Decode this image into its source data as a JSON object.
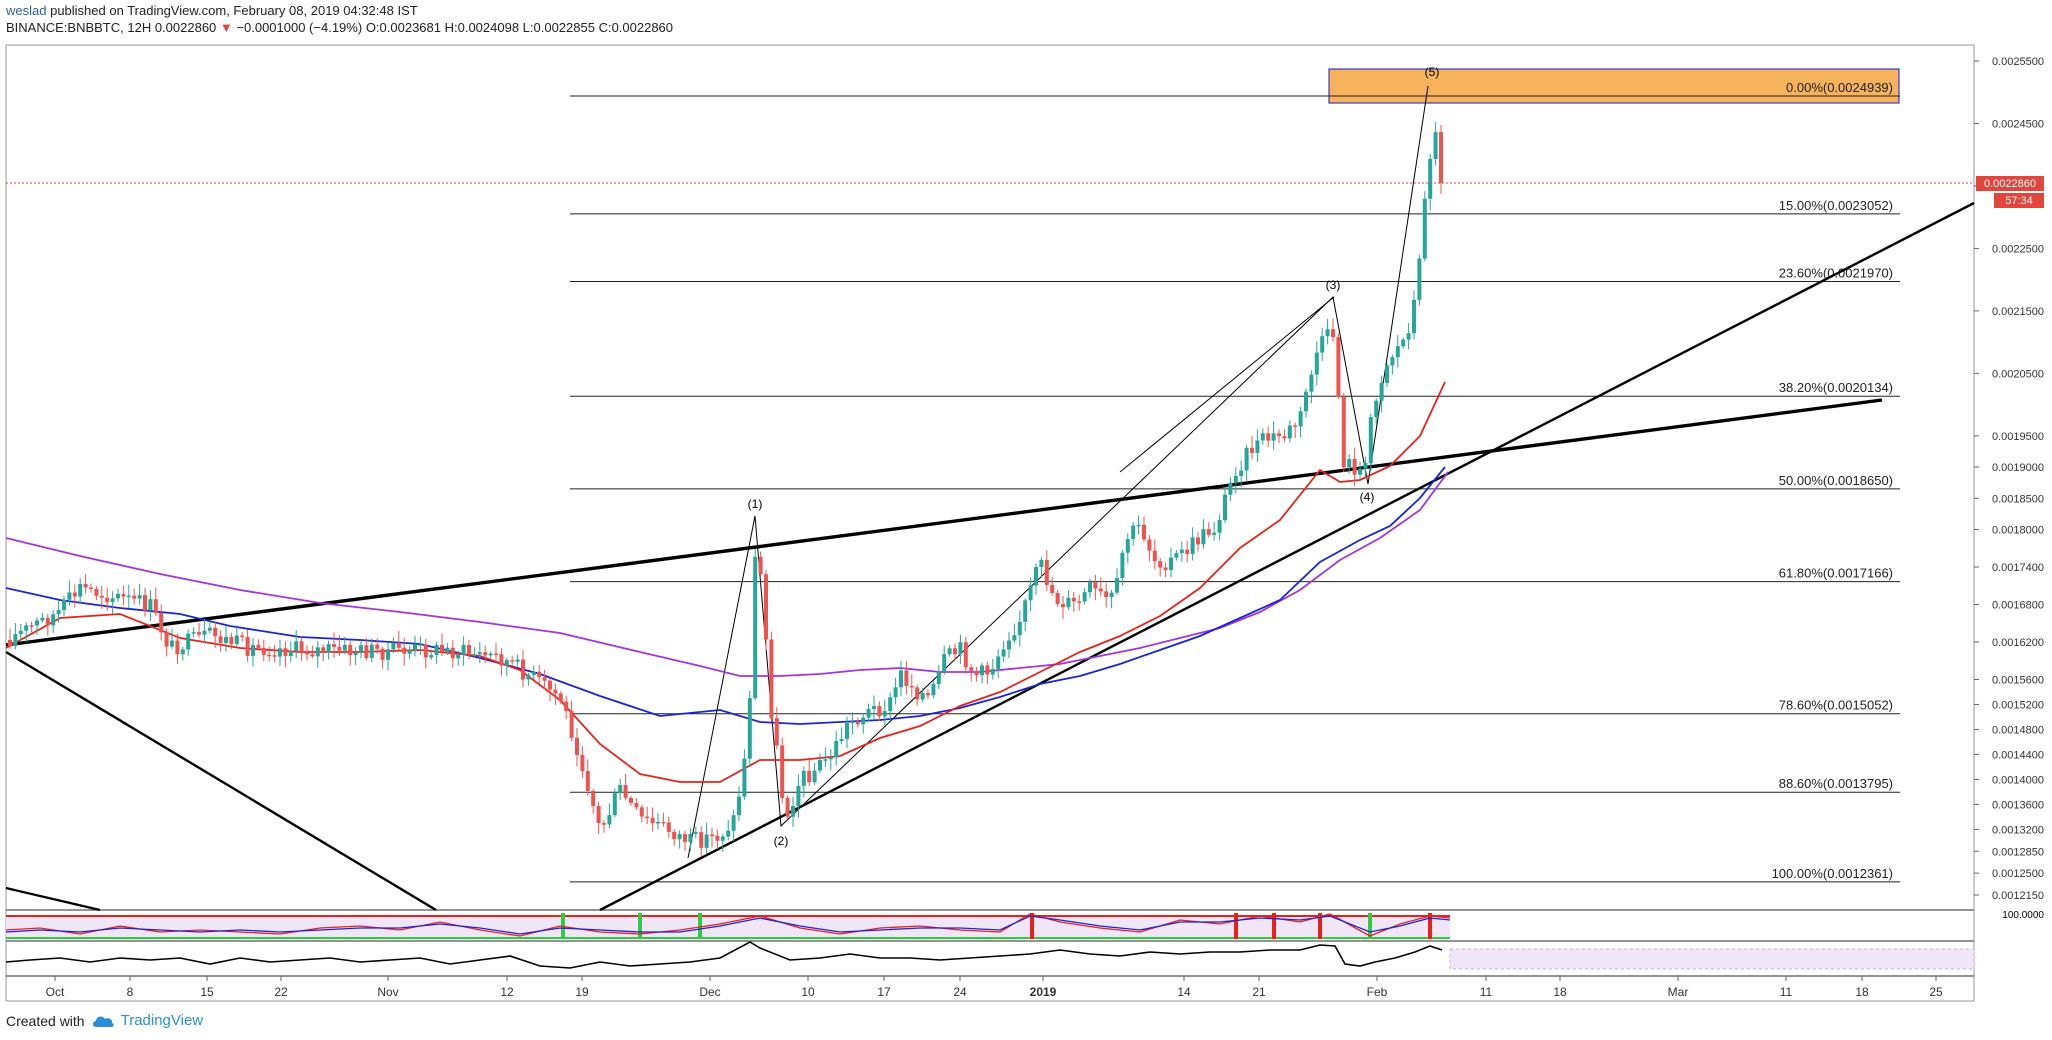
{
  "header": {
    "username": "weslad",
    "published_text": "published on TradingView.com, February 08, 2019 04:32:48 IST",
    "symbol_line": "BINANCE:BNBBTC, 12H",
    "last_price": "0.0022860",
    "change_arrow": "▼",
    "change_text": "−0.0001000 (−4.19%)",
    "ohlc": "O:0.0023681 H:0.0024098 L:0.0022855 C:0.0022860"
  },
  "footer": {
    "created_with": "Created with",
    "brand": "TradingView"
  },
  "chart_data": {
    "type": "candlestick",
    "symbol": "BINANCE:BNBBTC",
    "interval": "12H",
    "ylim": [
      0.00119,
      0.00256
    ],
    "y_tick_labels": [
      "0.0025500",
      "0.0024500",
      "0.0023500",
      "0.0022500",
      "0.0021500",
      "0.0020500",
      "0.0019500",
      "0.0019000",
      "0.0018500",
      "0.0018000",
      "0.0017400",
      "0.0016800",
      "0.0016200",
      "0.0015600",
      "0.0015200",
      "0.0014800",
      "0.0014400",
      "0.0014000",
      "0.0013600",
      "0.0013200",
      "0.0012850",
      "0.0012500",
      "0.0012150"
    ],
    "y_tick_values": [
      0.00255,
      0.00245,
      0.00235,
      0.00225,
      0.00215,
      0.00205,
      0.00195,
      0.0019,
      0.00185,
      0.0018,
      0.00174,
      0.00168,
      0.00162,
      0.00156,
      0.00152,
      0.00148,
      0.00144,
      0.0014,
      0.00136,
      0.00132,
      0.001285,
      0.00125,
      0.001215
    ],
    "x_tick_labels": [
      "Oct",
      "8",
      "15",
      "22",
      "Nov",
      "12",
      "19",
      "Dec",
      "10",
      "17",
      "24",
      "2019",
      "14",
      "21",
      "Feb",
      "11",
      "18",
      "Mar",
      "11",
      "18",
      "25"
    ],
    "current_price_label": "0.0022860",
    "countdown_label": "57:34",
    "fib_levels": [
      {
        "label": "0.00%(0.0024939)",
        "value": 0.0024939
      },
      {
        "label": "15.00%(0.0023052)",
        "value": 0.0023052
      },
      {
        "label": "23.60%(0.0021970)",
        "value": 0.002197
      },
      {
        "label": "38.20%(0.0020134)",
        "value": 0.0020134
      },
      {
        "label": "50.00%(0.0018650)",
        "value": 0.001865
      },
      {
        "label": "61.80%(0.0017166)",
        "value": 0.0017166
      },
      {
        "label": "78.60%(0.0015052)",
        "value": 0.0015052
      },
      {
        "label": "88.60%(0.0013795)",
        "value": 0.0013795
      },
      {
        "label": "100.00%(0.0012361)",
        "value": 0.0012361
      }
    ],
    "wave_labels": [
      "(1)",
      "(2)",
      "(3)",
      "(4)",
      "(5)"
    ],
    "oscillator_level_label": "100.0000",
    "colors": {
      "up": "#26a69a",
      "down": "#ef5350",
      "ma_red": "#e8221b",
      "ma_blue": "#1b24d6",
      "ma_purple": "#a335e0",
      "target_box": "#f6b35c",
      "price_line": "#e0463c"
    }
  }
}
